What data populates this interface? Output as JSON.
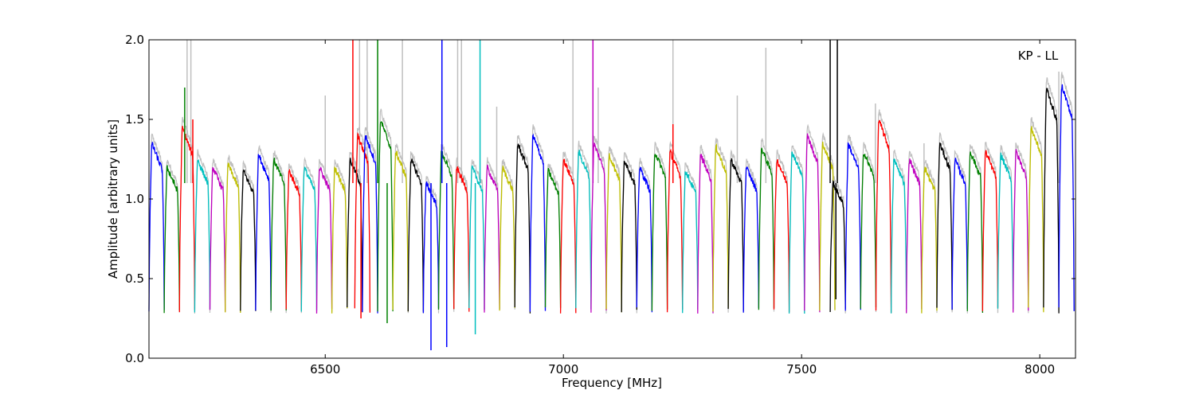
{
  "chart_data": {
    "type": "line",
    "title": "",
    "xlabel": "Frequency [MHz]",
    "ylabel": "Amplitude [arbitrary units]",
    "annotation": "KP - LL",
    "xlim": [
      6130,
      8075
    ],
    "ylim": [
      0.0,
      2.0
    ],
    "xticks": [
      6500,
      7000,
      7500,
      8000
    ],
    "xtick_labels": [
      "6500",
      "7000",
      "7500",
      "8000"
    ],
    "yticks": [
      0.0,
      0.5,
      1.0,
      1.5,
      2.0
    ],
    "ytick_labels": [
      "0.0",
      "0.5",
      "1.0",
      "1.5",
      "2.0"
    ],
    "grid": false,
    "background_series_color": "#bfbfbf",
    "channel_width_mhz": 32,
    "channel_edge_value": 0.3,
    "series": [
      {
        "color": "#0000ff",
        "x_start": 6130,
        "peak": 1.35
      },
      {
        "color": "#008000",
        "x_start": 6162,
        "peak": 1.2
      },
      {
        "color": "#ff0000",
        "x_start": 6194,
        "peak": 1.45
      },
      {
        "color": "#00bfbf",
        "x_start": 6226,
        "peak": 1.25
      },
      {
        "color": "#bf00bf",
        "x_start": 6258,
        "peak": 1.2
      },
      {
        "color": "#bfbf00",
        "x_start": 6290,
        "peak": 1.22
      },
      {
        "color": "#000000",
        "x_start": 6322,
        "peak": 1.18
      },
      {
        "color": "#0000ff",
        "x_start": 6354,
        "peak": 1.28
      },
      {
        "color": "#008000",
        "x_start": 6386,
        "peak": 1.25
      },
      {
        "color": "#ff0000",
        "x_start": 6418,
        "peak": 1.18
      },
      {
        "color": "#00bfbf",
        "x_start": 6450,
        "peak": 1.2
      },
      {
        "color": "#bf00bf",
        "x_start": 6482,
        "peak": 1.2
      },
      {
        "color": "#bfbf00",
        "x_start": 6514,
        "peak": 1.2
      },
      {
        "color": "#000000",
        "x_start": 6546,
        "peak": 1.25
      },
      {
        "color": "#ff0000",
        "x_start": 6562,
        "peak": 1.4
      },
      {
        "color": "#0000ff",
        "x_start": 6578,
        "peak": 1.4
      },
      {
        "color": "#008000",
        "x_start": 6610,
        "peak": 1.5
      },
      {
        "color": "#bfbf00",
        "x_start": 6642,
        "peak": 1.3
      },
      {
        "color": "#000000",
        "x_start": 6674,
        "peak": 1.25
      },
      {
        "color": "#0000ff",
        "x_start": 6706,
        "peak": 1.1
      },
      {
        "color": "#008000",
        "x_start": 6738,
        "peak": 1.3
      },
      {
        "color": "#ff0000",
        "x_start": 6770,
        "peak": 1.2
      },
      {
        "color": "#00bfbf",
        "x_start": 6802,
        "peak": 1.2
      },
      {
        "color": "#bf00bf",
        "x_start": 6834,
        "peak": 1.2
      },
      {
        "color": "#bfbf00",
        "x_start": 6866,
        "peak": 1.2
      },
      {
        "color": "#000000",
        "x_start": 6898,
        "peak": 1.35
      },
      {
        "color": "#0000ff",
        "x_start": 6930,
        "peak": 1.4
      },
      {
        "color": "#008000",
        "x_start": 6962,
        "peak": 1.18
      },
      {
        "color": "#ff0000",
        "x_start": 6994,
        "peak": 1.25
      },
      {
        "color": "#00bfbf",
        "x_start": 7026,
        "peak": 1.3
      },
      {
        "color": "#bf00bf",
        "x_start": 7058,
        "peak": 1.35
      },
      {
        "color": "#bfbf00",
        "x_start": 7090,
        "peak": 1.28
      },
      {
        "color": "#000000",
        "x_start": 7122,
        "peak": 1.25
      },
      {
        "color": "#0000ff",
        "x_start": 7154,
        "peak": 1.2
      },
      {
        "color": "#008000",
        "x_start": 7186,
        "peak": 1.3
      },
      {
        "color": "#ff0000",
        "x_start": 7218,
        "peak": 1.3
      },
      {
        "color": "#00bfbf",
        "x_start": 7250,
        "peak": 1.18
      },
      {
        "color": "#bf00bf",
        "x_start": 7282,
        "peak": 1.28
      },
      {
        "color": "#bfbf00",
        "x_start": 7314,
        "peak": 1.33
      },
      {
        "color": "#000000",
        "x_start": 7346,
        "peak": 1.25
      },
      {
        "color": "#0000ff",
        "x_start": 7378,
        "peak": 1.2
      },
      {
        "color": "#008000",
        "x_start": 7410,
        "peak": 1.32
      },
      {
        "color": "#ff0000",
        "x_start": 7442,
        "peak": 1.25
      },
      {
        "color": "#00bfbf",
        "x_start": 7474,
        "peak": 1.3
      },
      {
        "color": "#bf00bf",
        "x_start": 7506,
        "peak": 1.4
      },
      {
        "color": "#bfbf00",
        "x_start": 7538,
        "peak": 1.35
      },
      {
        "color": "#000000",
        "x_start": 7560,
        "peak": 1.1
      },
      {
        "color": "#0000ff",
        "x_start": 7592,
        "peak": 1.35
      },
      {
        "color": "#008000",
        "x_start": 7624,
        "peak": 1.3
      },
      {
        "color": "#ff0000",
        "x_start": 7656,
        "peak": 1.5
      },
      {
        "color": "#00bfbf",
        "x_start": 7688,
        "peak": 1.25
      },
      {
        "color": "#bf00bf",
        "x_start": 7720,
        "peak": 1.25
      },
      {
        "color": "#bfbf00",
        "x_start": 7752,
        "peak": 1.2
      },
      {
        "color": "#000000",
        "x_start": 7784,
        "peak": 1.35
      },
      {
        "color": "#0000ff",
        "x_start": 7816,
        "peak": 1.25
      },
      {
        "color": "#008000",
        "x_start": 7848,
        "peak": 1.3
      },
      {
        "color": "#ff0000",
        "x_start": 7880,
        "peak": 1.3
      },
      {
        "color": "#00bfbf",
        "x_start": 7912,
        "peak": 1.28
      },
      {
        "color": "#bf00bf",
        "x_start": 7944,
        "peak": 1.3
      },
      {
        "color": "#bfbf00",
        "x_start": 7976,
        "peak": 1.45
      },
      {
        "color": "#000000",
        "x_start": 8008,
        "peak": 1.7
      },
      {
        "color": "#0000ff",
        "x_start": 8040,
        "peak": 1.72
      }
    ],
    "spikes": [
      {
        "x": 6205,
        "value": 1.7,
        "color": "#008000"
      },
      {
        "x": 6222,
        "value": 1.5,
        "color": "#ff0000"
      },
      {
        "x": 6558,
        "value": 2.0,
        "color": "#ff0000"
      },
      {
        "x": 6575,
        "value": 0.25,
        "color": "#ff0000"
      },
      {
        "x": 6610,
        "value": 2.0,
        "color": "#008000"
      },
      {
        "x": 6630,
        "value": 0.22,
        "color": "#008000"
      },
      {
        "x": 6722,
        "value": 0.05,
        "color": "#0000ff"
      },
      {
        "x": 6745,
        "value": 2.0,
        "color": "#0000ff"
      },
      {
        "x": 6755,
        "value": 0.07,
        "color": "#0000ff"
      },
      {
        "x": 6825,
        "value": 2.0,
        "color": "#00bfbf"
      },
      {
        "x": 6815,
        "value": 0.15,
        "color": "#00bfbf"
      },
      {
        "x": 7062,
        "value": 2.0,
        "color": "#bf00bf"
      },
      {
        "x": 7230,
        "value": 1.47,
        "color": "#ff0000"
      },
      {
        "x": 7560,
        "value": 2.0,
        "color": "#000000"
      },
      {
        "x": 7575,
        "value": 2.0,
        "color": "#000000"
      },
      {
        "x": 7572,
        "value": 0.37,
        "color": "#000000"
      }
    ],
    "background_spikes": [
      {
        "x": 6210,
        "value": 2.0
      },
      {
        "x": 6218,
        "value": 2.0
      },
      {
        "x": 6500,
        "value": 1.65
      },
      {
        "x": 6572,
        "value": 2.0
      },
      {
        "x": 6588,
        "value": 2.0
      },
      {
        "x": 6662,
        "value": 2.0
      },
      {
        "x": 6778,
        "value": 2.0
      },
      {
        "x": 6786,
        "value": 2.0
      },
      {
        "x": 6860,
        "value": 1.58
      },
      {
        "x": 7020,
        "value": 2.0
      },
      {
        "x": 7073,
        "value": 1.7
      },
      {
        "x": 7230,
        "value": 2.0
      },
      {
        "x": 7365,
        "value": 1.65
      },
      {
        "x": 7425,
        "value": 1.95
      },
      {
        "x": 7655,
        "value": 1.6
      },
      {
        "x": 7757,
        "value": 1.35
      },
      {
        "x": 8040,
        "value": 1.8
      }
    ]
  }
}
